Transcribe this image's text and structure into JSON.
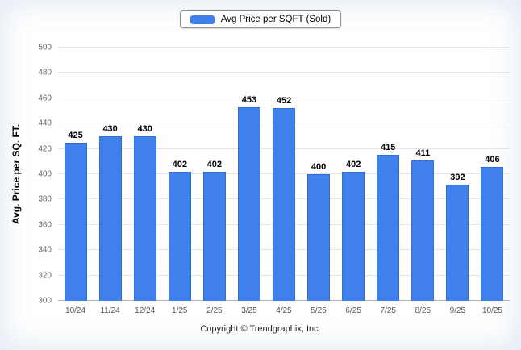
{
  "chart_data": {
    "type": "bar",
    "legend": "Avg Price per SQFT (Sold)",
    "ylabel": "Avg. Price per SQ. FT.",
    "xlabel": "",
    "categories": [
      "10/24",
      "11/24",
      "12/24",
      "1/25",
      "2/25",
      "3/25",
      "4/25",
      "5/25",
      "6/25",
      "7/25",
      "8/25",
      "9/25",
      "10/25"
    ],
    "values": [
      425,
      430,
      430,
      402,
      402,
      453,
      452,
      400,
      402,
      415,
      411,
      392,
      406
    ],
    "ylim": [
      300,
      500
    ],
    "ytick_step": 20,
    "bar_color": "#3f80ed",
    "grid": true,
    "legend_position": "top"
  },
  "footer": {
    "copyright": "Copyright © Trendgraphix, Inc."
  }
}
